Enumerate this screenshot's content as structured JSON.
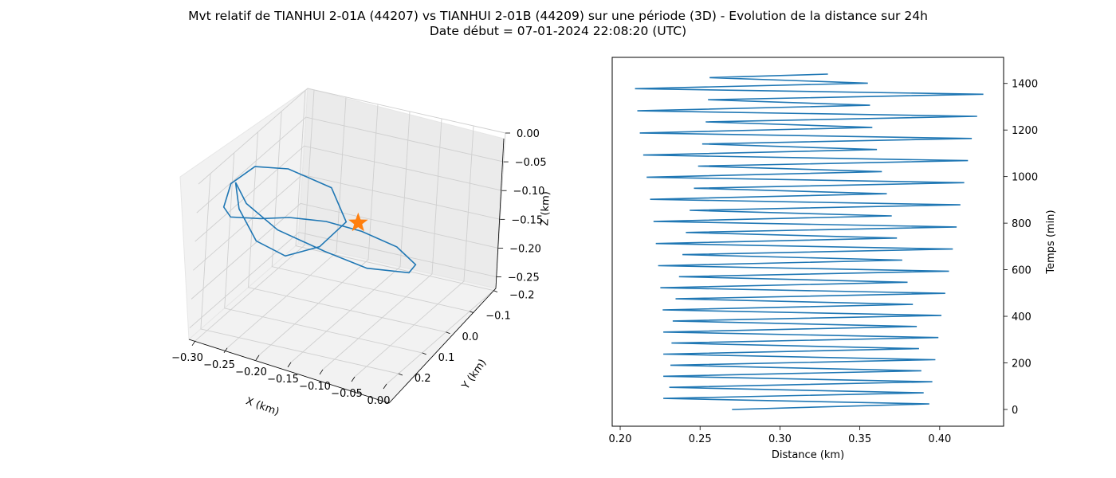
{
  "figure": {
    "title_line1": "Mvt relatif de TIANHUI 2-01A (44207) vs TIANHUI 2-01B (44209) sur une période (3D) - Evolution de la distance sur 24h",
    "title_line2": "Date début = 07-01-2024 22:08:20 (UTC)"
  },
  "colors": {
    "series": "#1f77b4",
    "star": "#ff7f0e",
    "pane_back": "#ebebeb",
    "pane_left": "#f2f2f2",
    "pane_floor": "#f2f2f2",
    "grid": "#cfcfcf"
  },
  "chart_data": [
    {
      "type": "line3d",
      "xlabel": "X (km)",
      "ylabel": "Y (km)",
      "zlabel": "Z (km)",
      "xlim": [
        -0.31,
        0.0
      ],
      "ylim": [
        -0.21,
        0.25
      ],
      "zlim": [
        -0.27,
        0.0
      ],
      "xticks": [
        "−0.30",
        "−0.25",
        "−0.20",
        "−0.15",
        "−0.10",
        "−0.05",
        "0.00"
      ],
      "xtick_values": [
        -0.3,
        -0.25,
        -0.2,
        -0.15,
        -0.1,
        -0.05,
        0.0
      ],
      "yticks": [
        "−0.2",
        "−0.1",
        "0.0",
        "0.1",
        "0.2"
      ],
      "ytick_values": [
        -0.2,
        -0.1,
        0.0,
        0.1,
        0.2
      ],
      "zticks": [
        "0.00",
        "−0.05",
        "−0.10",
        "−0.15",
        "−0.20",
        "−0.25"
      ],
      "ztick_values": [
        0.0,
        -0.05,
        -0.1,
        -0.15,
        -0.2,
        -0.25
      ],
      "grid": true,
      "trajectory": {
        "x": [
          -0.305,
          -0.3,
          -0.27,
          -0.22,
          -0.17,
          -0.115,
          -0.095,
          -0.105,
          -0.14,
          -0.175,
          -0.215,
          -0.245,
          -0.285,
          -0.3,
          -0.305,
          -0.28,
          -0.235,
          -0.17,
          -0.13,
          -0.155,
          -0.2,
          -0.25,
          -0.29,
          -0.305
        ],
        "y": [
          0.1,
          0.06,
          0.0,
          -0.07,
          -0.12,
          -0.15,
          -0.12,
          -0.06,
          0.0,
          0.06,
          0.11,
          0.15,
          0.17,
          0.16,
          0.12,
          0.09,
          0.07,
          0.06,
          0.1,
          0.14,
          0.16,
          0.15,
          0.12,
          0.1
        ],
        "z": [
          -0.05,
          -0.1,
          -0.16,
          -0.21,
          -0.245,
          -0.25,
          -0.22,
          -0.17,
          -0.13,
          -0.1,
          -0.085,
          -0.08,
          -0.08,
          -0.07,
          -0.045,
          -0.02,
          -0.02,
          -0.04,
          -0.075,
          -0.11,
          -0.13,
          -0.12,
          -0.085,
          -0.05
        ]
      },
      "marker": {
        "x": -0.075,
        "y": 0.205,
        "z": -0.025,
        "shape": "star-icon"
      }
    },
    {
      "type": "line",
      "xlabel": "Distance (km)",
      "ylabel": "Temps (min)",
      "xlim": [
        0.195,
        0.44
      ],
      "ylim": [
        -72,
        1512
      ],
      "xticks": [
        "0.20",
        "0.25",
        "0.30",
        "0.35",
        "0.40"
      ],
      "xtick_values": [
        0.2,
        0.25,
        0.3,
        0.35,
        0.4
      ],
      "yticks": [
        "0",
        "200",
        "400",
        "600",
        "800",
        "1000",
        "1200",
        "1400"
      ],
      "ytick_values": [
        0,
        200,
        400,
        600,
        800,
        1000,
        1200,
        1400
      ],
      "y_axis_side": "right",
      "grid": false,
      "oscillation": {
        "t_start": 0,
        "t_end": 1440,
        "period_min": 95,
        "distance_start": 0.27,
        "distance_end": 0.33,
        "max_envelope": [
          [
            0,
            0.393
          ],
          [
            400,
            0.401
          ],
          [
            800,
            0.411
          ],
          [
            1200,
            0.421
          ],
          [
            1395,
            0.429
          ]
        ],
        "min_envelope": [
          [
            0,
            0.227
          ],
          [
            400,
            0.227
          ],
          [
            800,
            0.221
          ],
          [
            1200,
            0.212
          ],
          [
            1395,
            0.209
          ]
        ],
        "inner_max_envelope": [
          [
            0,
            0.391
          ],
          [
            400,
            0.385
          ],
          [
            800,
            0.371
          ],
          [
            1200,
            0.358
          ],
          [
            1395,
            0.355
          ]
        ],
        "inner_min_envelope": [
          [
            0,
            0.23
          ],
          [
            400,
            0.233
          ],
          [
            800,
            0.242
          ],
          [
            1200,
            0.253
          ],
          [
            1395,
            0.256
          ]
        ]
      }
    }
  ]
}
